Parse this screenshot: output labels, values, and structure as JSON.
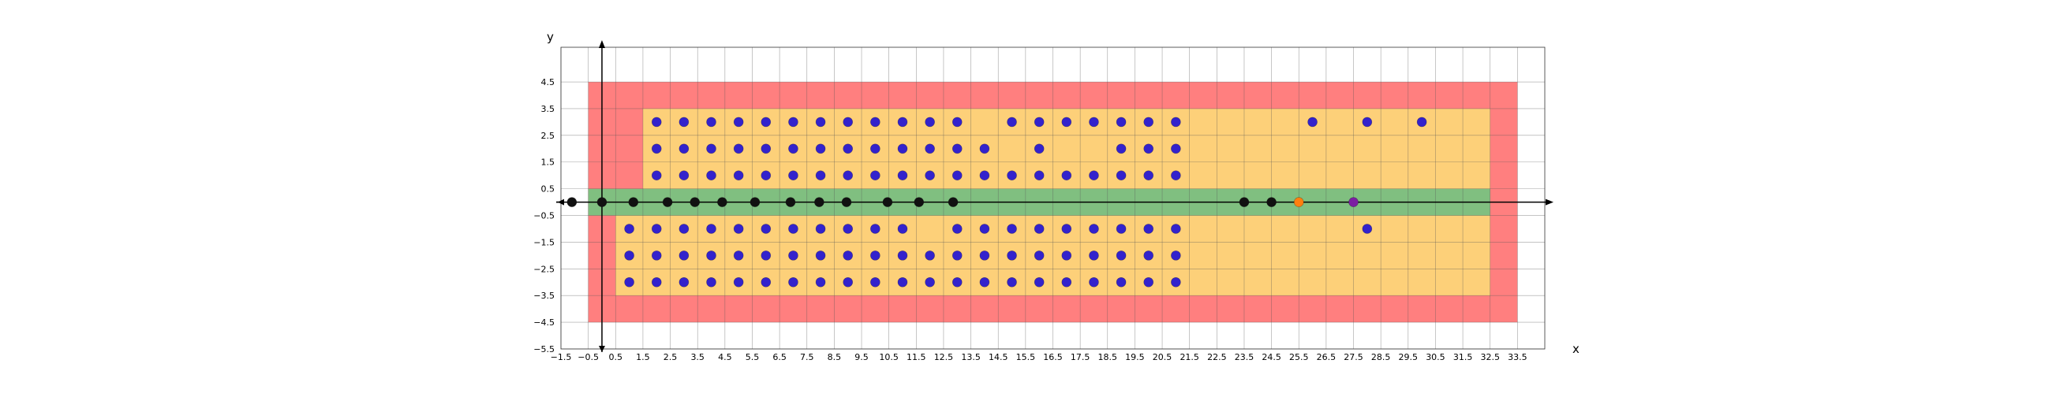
{
  "chart_data": {
    "type": "scatter",
    "title": "",
    "xlabel": "x",
    "ylabel": "y",
    "xlim": [
      -1.5,
      34.5
    ],
    "ylim": [
      -5.5,
      5.8
    ],
    "grid": true,
    "xticks": [
      -1.5,
      -0.5,
      0.5,
      1.5,
      2.5,
      3.5,
      4.5,
      5.5,
      6.5,
      7.5,
      8.5,
      9.5,
      10.5,
      11.5,
      12.5,
      13.5,
      14.5,
      15.5,
      16.5,
      17.5,
      18.5,
      19.5,
      20.5,
      21.5,
      22.5,
      23.5,
      24.5,
      25.5,
      26.5,
      27.5,
      28.5,
      29.5,
      30.5,
      31.5,
      32.5,
      33.5
    ],
    "yticks": [
      -5.5,
      -4.5,
      -3.5,
      -2.5,
      -1.5,
      -0.5,
      0.5,
      1.5,
      2.5,
      3.5,
      4.5
    ],
    "xtick_labels": [
      "−1.5",
      "−0.5",
      "0.5",
      "1.5",
      "2.5",
      "3.5",
      "4.5",
      "5.5",
      "6.5",
      "7.5",
      "8.5",
      "9.5",
      "10.5",
      "11.5",
      "12.5",
      "13.5",
      "14.5",
      "15.5",
      "16.5",
      "17.5",
      "18.5",
      "19.5",
      "20.5",
      "21.5",
      "22.5",
      "23.5",
      "24.5",
      "25.5",
      "26.5",
      "27.5",
      "28.5",
      "29.5",
      "30.5",
      "31.5",
      "32.5",
      "33.5"
    ],
    "ytick_labels": [
      "−5.5",
      "−4.5",
      "−3.5",
      "−2.5",
      "−1.5",
      "−0.5",
      "0.5",
      "1.5",
      "2.5",
      "3.5",
      "4.5"
    ],
    "regions": [
      {
        "color": "#ff7f7f",
        "x": [
          -0.5,
          33.5
        ],
        "y": [
          -4.5,
          4.5
        ]
      },
      {
        "color": "#fdd079",
        "x": [
          1.5,
          32.5
        ],
        "y": [
          0.5,
          3.5
        ]
      },
      {
        "color": "#fdd079",
        "x": [
          0.5,
          32.5
        ],
        "y": [
          -3.5,
          -0.5
        ]
      },
      {
        "color": "#80bf80",
        "x": [
          -0.5,
          32.5
        ],
        "y": [
          -0.5,
          0.5
        ]
      }
    ],
    "series": [
      {
        "color": "#3322cc",
        "points": [
          [
            2,
            3
          ],
          [
            3,
            3
          ],
          [
            4,
            3
          ],
          [
            5,
            3
          ],
          [
            6,
            3
          ],
          [
            7,
            3
          ],
          [
            8,
            3
          ],
          [
            9,
            3
          ],
          [
            10,
            3
          ],
          [
            11,
            3
          ],
          [
            12,
            3
          ],
          [
            13,
            3
          ],
          [
            15,
            3
          ],
          [
            16,
            3
          ],
          [
            17,
            3
          ],
          [
            18,
            3
          ],
          [
            19,
            3
          ],
          [
            20,
            3
          ],
          [
            21,
            3
          ],
          [
            26,
            3
          ],
          [
            28,
            3
          ],
          [
            30,
            3
          ],
          [
            2,
            2
          ],
          [
            3,
            2
          ],
          [
            4,
            2
          ],
          [
            5,
            2
          ],
          [
            6,
            2
          ],
          [
            7,
            2
          ],
          [
            8,
            2
          ],
          [
            9,
            2
          ],
          [
            10,
            2
          ],
          [
            11,
            2
          ],
          [
            12,
            2
          ],
          [
            13,
            2
          ],
          [
            14,
            2
          ],
          [
            16,
            2
          ],
          [
            19,
            2
          ],
          [
            20,
            2
          ],
          [
            21,
            2
          ],
          [
            2,
            1
          ],
          [
            3,
            1
          ],
          [
            4,
            1
          ],
          [
            5,
            1
          ],
          [
            6,
            1
          ],
          [
            7,
            1
          ],
          [
            8,
            1
          ],
          [
            9,
            1
          ],
          [
            10,
            1
          ],
          [
            11,
            1
          ],
          [
            12,
            1
          ],
          [
            13,
            1
          ],
          [
            14,
            1
          ],
          [
            15,
            1
          ],
          [
            16,
            1
          ],
          [
            17,
            1
          ],
          [
            18,
            1
          ],
          [
            19,
            1
          ],
          [
            20,
            1
          ],
          [
            21,
            1
          ],
          [
            1,
            -1
          ],
          [
            2,
            -1
          ],
          [
            3,
            -1
          ],
          [
            4,
            -1
          ],
          [
            5,
            -1
          ],
          [
            6,
            -1
          ],
          [
            7,
            -1
          ],
          [
            8,
            -1
          ],
          [
            9,
            -1
          ],
          [
            10,
            -1
          ],
          [
            11,
            -1
          ],
          [
            13,
            -1
          ],
          [
            14,
            -1
          ],
          [
            15,
            -1
          ],
          [
            16,
            -1
          ],
          [
            17,
            -1
          ],
          [
            18,
            -1
          ],
          [
            19,
            -1
          ],
          [
            20,
            -1
          ],
          [
            21,
            -1
          ],
          [
            28,
            -1
          ],
          [
            1,
            -2
          ],
          [
            2,
            -2
          ],
          [
            3,
            -2
          ],
          [
            4,
            -2
          ],
          [
            5,
            -2
          ],
          [
            6,
            -2
          ],
          [
            7,
            -2
          ],
          [
            8,
            -2
          ],
          [
            9,
            -2
          ],
          [
            10,
            -2
          ],
          [
            11,
            -2
          ],
          [
            12,
            -2
          ],
          [
            13,
            -2
          ],
          [
            14,
            -2
          ],
          [
            15,
            -2
          ],
          [
            16,
            -2
          ],
          [
            17,
            -2
          ],
          [
            18,
            -2
          ],
          [
            19,
            -2
          ],
          [
            20,
            -2
          ],
          [
            21,
            -2
          ],
          [
            2,
            -3
          ],
          [
            3,
            -3
          ],
          [
            4,
            -3
          ],
          [
            5,
            -3
          ],
          [
            6,
            -3
          ],
          [
            7,
            -3
          ],
          [
            8,
            -3
          ],
          [
            9,
            -3
          ],
          [
            10,
            -3
          ],
          [
            11,
            -3
          ],
          [
            12,
            -3
          ],
          [
            13,
            -3
          ],
          [
            14,
            -3
          ],
          [
            15,
            -3
          ],
          [
            16,
            -3
          ],
          [
            17,
            -3
          ],
          [
            18,
            -3
          ],
          [
            19,
            -3
          ],
          [
            20,
            -3
          ],
          [
            21,
            -3
          ],
          [
            1,
            -3
          ]
        ]
      },
      {
        "color": "#111111",
        "points": [
          [
            -1.1,
            0
          ],
          [
            0,
            0
          ],
          [
            1.15,
            0
          ],
          [
            2.4,
            0
          ],
          [
            3.4,
            0
          ],
          [
            4.4,
            0
          ],
          [
            5.6,
            0
          ],
          [
            6.9,
            0
          ],
          [
            7.95,
            0
          ],
          [
            8.95,
            0
          ],
          [
            10.45,
            0
          ],
          [
            11.6,
            0
          ],
          [
            12.85,
            0
          ],
          [
            23.5,
            0
          ],
          [
            24.5,
            0
          ]
        ]
      },
      {
        "color": "#ff7f0e",
        "points": [
          [
            25.5,
            0
          ]
        ]
      },
      {
        "color": "#7b1fa2",
        "points": [
          [
            27.5,
            0
          ]
        ]
      }
    ]
  }
}
